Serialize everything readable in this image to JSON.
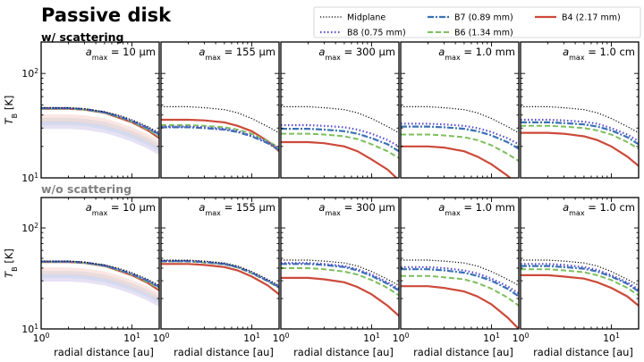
{
  "figure_title": "Passive disk",
  "legend": [
    {
      "label": "Midplane",
      "color": "#000000",
      "dash": "1.2,2",
      "width": 1.2
    },
    {
      "label": "B8 (0.75 mm)",
      "color": "#5a4fcf",
      "dash": "1.5,2.5",
      "width": 2.2
    },
    {
      "label": "B7 (0.89 mm)",
      "color": "#3a72b4",
      "dash": "7,2,2,2",
      "width": 2.2
    },
    {
      "label": "B6 (1.34 mm)",
      "color": "#7dbf5f",
      "dash": "6,3",
      "width": 2.0
    },
    {
      "label": "B4 (2.17 mm)",
      "color": "#cc4a3a",
      "dash": "",
      "width": 2.2
    }
  ],
  "rows": [
    {
      "label": "w/ scattering",
      "label_color": "#000000"
    },
    {
      "label": "w/o scattering",
      "label_color": "#808080"
    }
  ],
  "panel_titles": [
    "a_max = 10 μm",
    "a_max = 155 μm",
    "a_max = 300 μm",
    "a_max = 1.0 mm",
    "a_max = 1.0 cm"
  ],
  "panel_title_parts": [
    {
      "pre": "a",
      "sub": "max",
      "post": " = 10 μm"
    },
    {
      "pre": "a",
      "sub": "max",
      "post": " = 155 μm"
    },
    {
      "pre": "a",
      "sub": "max",
      "post": " = 300 μm"
    },
    {
      "pre": "a",
      "sub": "max",
      "post": " = 1.0 mm"
    },
    {
      "pre": "a",
      "sub": "max",
      "post": " = 1.0 cm"
    }
  ],
  "xlabel": "radial distance [au]",
  "ylabel": "T_B [K]",
  "ylabel_parts": {
    "main": "T",
    "sub": "B",
    "post": " [K]"
  },
  "x_tick_labels": [
    {
      "base": "10",
      "exp": "0"
    },
    {
      "base": "10",
      "exp": "1"
    }
  ],
  "y_tick_labels": [
    {
      "value": 10,
      "base": "10",
      "exp": "1"
    },
    {
      "value": 100,
      "base": "10",
      "exp": "2"
    }
  ],
  "chart_data": {
    "type": "line",
    "x_scale": "log",
    "y_scale": "log",
    "xlim": [
      1,
      20
    ],
    "ylim": [
      10,
      200
    ],
    "x": [
      1,
      2,
      3,
      5,
      7,
      10,
      15,
      20
    ],
    "series_names": [
      "Midplane",
      "B8 (0.75 mm)",
      "B7 (0.89 mm)",
      "B6 (1.34 mm)",
      "B4 (2.17 mm)"
    ],
    "panels": [
      {
        "row": 0,
        "amax": "10 μm",
        "series": [
          {
            "name": "Midplane",
            "values": [
              47,
              47,
              46,
              43,
              40,
              36,
              31,
              27
            ]
          },
          {
            "name": "B8 (0.75 mm)",
            "values": [
              46.5,
              46.5,
              45.5,
              42.5,
              39,
              35,
              30,
              26
            ]
          },
          {
            "name": "B7 (0.89 mm)",
            "values": [
              46.5,
              46.5,
              45.5,
              42.5,
              39,
              35,
              30,
              26
            ]
          },
          {
            "name": "B6 (1.34 mm)",
            "values": [
              46,
              46,
              45,
              42,
              38.5,
              34.5,
              29,
              25
            ]
          },
          {
            "name": "B4 (2.17 mm)",
            "values": [
              46,
              46,
              45,
              42,
              38,
              34,
              28.5,
              24
            ]
          }
        ]
      },
      {
        "row": 0,
        "amax": "155 μm",
        "series": [
          {
            "name": "Midplane",
            "values": [
              48,
              48,
              47,
              45,
              42,
              37,
              31,
              27
            ]
          },
          {
            "name": "B8 (0.75 mm)",
            "values": [
              31,
              31,
              30.5,
              29.5,
              28,
              25.5,
              22,
              19
            ]
          },
          {
            "name": "B7 (0.89 mm)",
            "values": [
              30.5,
              30.5,
              30,
              29,
              27.5,
              25,
              21.5,
              18.5
            ]
          },
          {
            "name": "B6 (1.34 mm)",
            "values": [
              32,
              32,
              31.5,
              30.5,
              29,
              26.5,
              22.5,
              19.5
            ]
          },
          {
            "name": "B4 (2.17 mm)",
            "values": [
              36,
              36,
              35.5,
              34,
              31.5,
              28,
              22.5,
              18
            ]
          }
        ]
      },
      {
        "row": 0,
        "amax": "300 μm",
        "series": [
          {
            "name": "Midplane",
            "values": [
              48,
              48,
              47,
              45,
              42,
              37,
              31,
              27
            ]
          },
          {
            "name": "B8 (0.75 mm)",
            "values": [
              32,
              32,
              31.5,
              30.5,
              29,
              26.5,
              23,
              20
            ]
          },
          {
            "name": "B7 (0.89 mm)",
            "values": [
              29.5,
              29.5,
              29,
              28,
              26.5,
              24,
              21,
              18
            ]
          },
          {
            "name": "B6 (1.34 mm)",
            "values": [
              26.5,
              26.5,
              26,
              25,
              23.5,
              21,
              18,
              15.5
            ]
          },
          {
            "name": "B4 (2.17 mm)",
            "values": [
              22,
              22,
              21.5,
              20,
              18,
              15,
              12,
              9.5
            ]
          }
        ]
      },
      {
        "row": 0,
        "amax": "1.0 mm",
        "series": [
          {
            "name": "Midplane",
            "values": [
              48,
              48,
              47,
              45,
              42,
              37,
              31,
              27
            ]
          },
          {
            "name": "B8 (0.75 mm)",
            "values": [
              33,
              33,
              32.5,
              31.5,
              30,
              27.5,
              24,
              21
            ]
          },
          {
            "name": "B7 (0.89 mm)",
            "values": [
              31,
              31,
              30.5,
              29.5,
              28,
              25.5,
              22,
              19
            ]
          },
          {
            "name": "B6 (1.34 mm)",
            "values": [
              26,
              26,
              25.5,
              24.5,
              23,
              20.5,
              17,
              14.5
            ]
          },
          {
            "name": "B4 (2.17 mm)",
            "values": [
              20,
              20,
              19.5,
              18,
              16,
              13.5,
              10.5,
              8.5
            ]
          }
        ]
      },
      {
        "row": 0,
        "amax": "1.0 cm",
        "series": [
          {
            "name": "Midplane",
            "values": [
              48,
              48,
              47,
              45,
              42,
              37,
              31,
              27
            ]
          },
          {
            "name": "B8 (0.75 mm)",
            "values": [
              36,
              36,
              35.5,
              34.5,
              33,
              30,
              26,
              22.5
            ]
          },
          {
            "name": "B7 (0.89 mm)",
            "values": [
              34,
              34,
              33.5,
              32.5,
              31,
              28.5,
              24.5,
              21
            ]
          },
          {
            "name": "B6 (1.34 mm)",
            "values": [
              31.5,
              31.5,
              31,
              30,
              28.5,
              26,
              22,
              19
            ]
          },
          {
            "name": "B4 (2.17 mm)",
            "values": [
              27,
              27,
              26.5,
              25,
              23,
              20,
              16,
              13
            ]
          }
        ]
      },
      {
        "row": 1,
        "amax": "10 μm",
        "series": [
          {
            "name": "Midplane",
            "values": [
              47,
              47,
              46,
              43,
              40,
              36,
              31,
              27
            ]
          },
          {
            "name": "B8 (0.75 mm)",
            "values": [
              46.5,
              46.5,
              45.5,
              42.5,
              39,
              35,
              30,
              26
            ]
          },
          {
            "name": "B7 (0.89 mm)",
            "values": [
              46.5,
              46.5,
              45.5,
              42.5,
              39,
              35,
              30,
              26
            ]
          },
          {
            "name": "B6 (1.34 mm)",
            "values": [
              46,
              46,
              45,
              42,
              38.5,
              34.5,
              29,
              25
            ]
          },
          {
            "name": "B4 (2.17 mm)",
            "values": [
              46,
              46,
              45,
              42,
              38,
              34,
              28.5,
              24
            ]
          }
        ]
      },
      {
        "row": 1,
        "amax": "155 μm",
        "series": [
          {
            "name": "Midplane",
            "values": [
              48,
              48,
              47,
              45,
              42,
              37,
              31,
              27
            ]
          },
          {
            "name": "B8 (0.75 mm)",
            "values": [
              47,
              47,
              46,
              44,
              41,
              36,
              30,
              26
            ]
          },
          {
            "name": "B7 (0.89 mm)",
            "values": [
              47,
              47,
              46,
              44,
              41,
              36,
              30,
              26
            ]
          },
          {
            "name": "B6 (1.34 mm)",
            "values": [
              46.5,
              46.5,
              45.5,
              43.5,
              40.5,
              35.5,
              29.5,
              25.5
            ]
          },
          {
            "name": "B4 (2.17 mm)",
            "values": [
              44,
              44,
              43,
              41,
              38,
              33,
              27,
              22
            ]
          }
        ]
      },
      {
        "row": 1,
        "amax": "300 μm",
        "series": [
          {
            "name": "Midplane",
            "values": [
              48,
              48,
              47,
              45,
              42,
              37,
              31,
              27
            ]
          },
          {
            "name": "B8 (0.75 mm)",
            "values": [
              45,
              45,
              44,
              42,
              39,
              34.5,
              29,
              25
            ]
          },
          {
            "name": "B7 (0.89 mm)",
            "values": [
              44,
              44,
              43,
              41,
              38,
              33.5,
              28,
              24
            ]
          },
          {
            "name": "B6 (1.34 mm)",
            "values": [
              40,
              40,
              39,
              37,
              34.5,
              30.5,
              25.5,
              21.5
            ]
          },
          {
            "name": "B4 (2.17 mm)",
            "values": [
              32,
              32,
              31,
              29,
              26,
              22,
              17,
              13.5
            ]
          }
        ]
      },
      {
        "row": 1,
        "amax": "1.0 mm",
        "series": [
          {
            "name": "Midplane",
            "values": [
              48,
              48,
              47,
              45,
              42,
              37,
              31,
              27
            ]
          },
          {
            "name": "B8 (0.75 mm)",
            "values": [
              41,
              41,
              40,
              38,
              35.5,
              31.5,
              26.5,
              22.5
            ]
          },
          {
            "name": "B7 (0.89 mm)",
            "values": [
              39,
              39,
              38,
              36,
              33.5,
              30,
              25,
              21
            ]
          },
          {
            "name": "B6 (1.34 mm)",
            "values": [
              33.5,
              33.5,
              32.5,
              31,
              28.5,
              25,
              20.5,
              17
            ]
          },
          {
            "name": "B4 (2.17 mm)",
            "values": [
              26.5,
              26.5,
              25.5,
              23.5,
              21,
              17.5,
              13,
              10
            ]
          }
        ]
      },
      {
        "row": 1,
        "amax": "1.0 cm",
        "series": [
          {
            "name": "Midplane",
            "values": [
              48,
              48,
              47,
              45,
              42,
              37,
              31,
              27
            ]
          },
          {
            "name": "B8 (0.75 mm)",
            "values": [
              44,
              44,
              43,
              41,
              38.5,
              34,
              29,
              24.5
            ]
          },
          {
            "name": "B7 (0.89 mm)",
            "values": [
              42,
              42,
              41,
              39.5,
              37,
              33,
              28,
              23.5
            ]
          },
          {
            "name": "B6 (1.34 mm)",
            "values": [
              39,
              39,
              38,
              36.5,
              34,
              30.5,
              25.5,
              21.5
            ]
          },
          {
            "name": "B4 (2.17 mm)",
            "values": [
              34,
              34,
              33,
              31.5,
              29,
              25.5,
              21,
              17
            ]
          }
        ]
      }
    ]
  }
}
